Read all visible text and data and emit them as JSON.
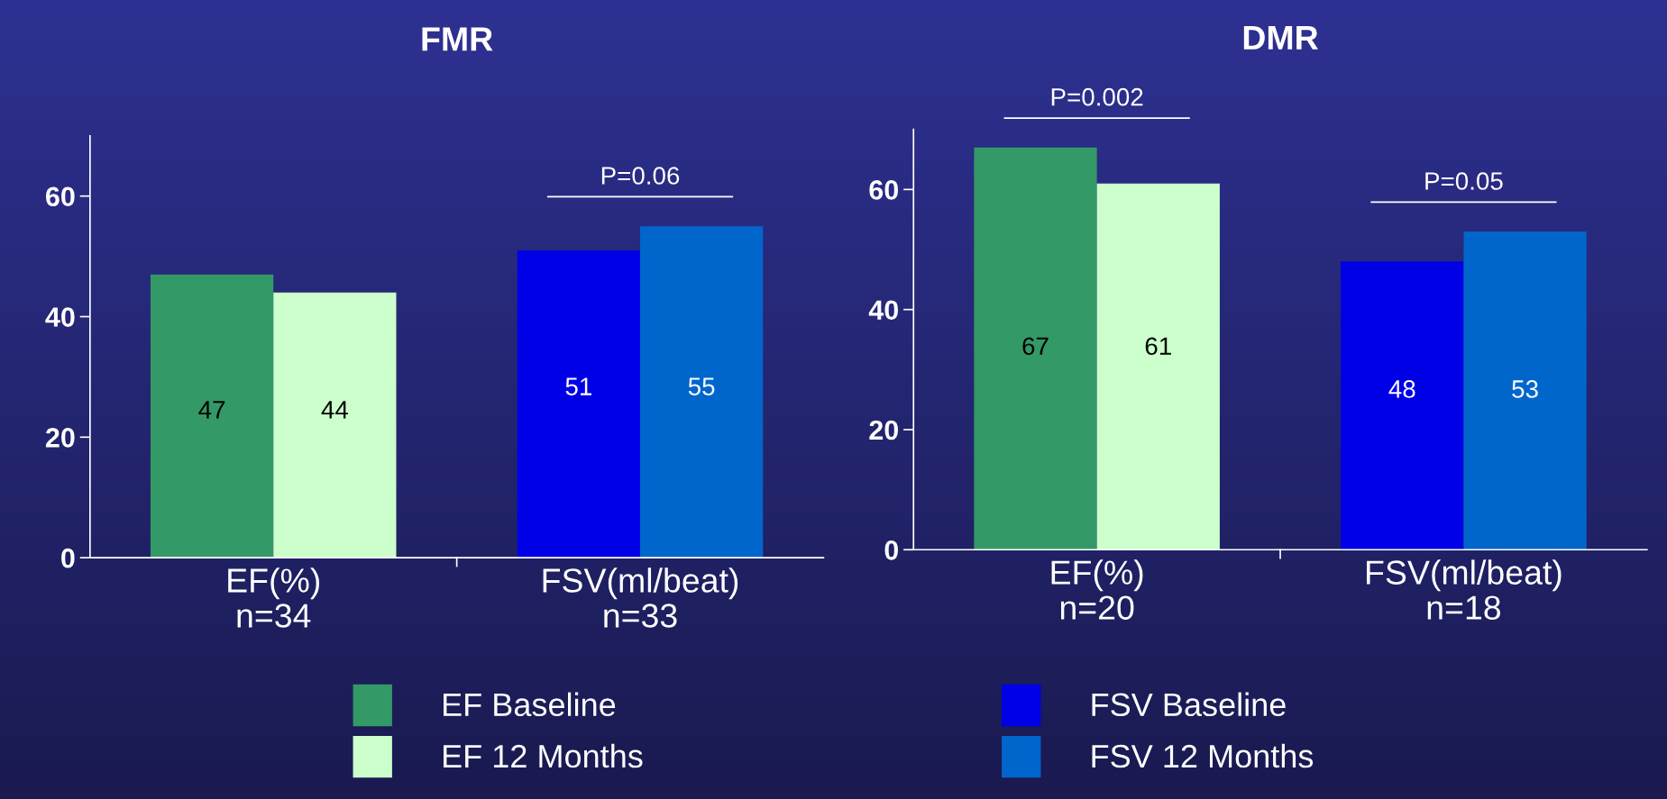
{
  "chart_data": [
    {
      "type": "bar",
      "title": "FMR",
      "categories": [
        "EF(%)\nn=34",
        "FSV(ml/beat)\nn=33"
      ],
      "series": [
        {
          "name": "EF Baseline",
          "color": "#339966",
          "values": [
            47,
            null
          ]
        },
        {
          "name": "EF 12 Months",
          "color": "#ccffcc",
          "values": [
            44,
            null
          ]
        },
        {
          "name": "FSV Baseline",
          "color": "#0000e6",
          "values": [
            null,
            51
          ]
        },
        {
          "name": "FSV 12 Months",
          "color": "#0066cc",
          "values": [
            null,
            55
          ]
        }
      ],
      "ylim": [
        0,
        70
      ],
      "yticks": [
        0,
        20,
        40,
        60
      ],
      "data_labels": true,
      "legend": "bottom",
      "grid": false,
      "annotations": [
        "P=0.06"
      ]
    },
    {
      "type": "bar",
      "title": "DMR",
      "categories": [
        "EF(%)\nn=20",
        "FSV(ml/beat)\nn=18"
      ],
      "series": [
        {
          "name": "EF Baseline",
          "color": "#339966",
          "values": [
            67,
            null
          ]
        },
        {
          "name": "EF 12 Months",
          "color": "#ccffcc",
          "values": [
            61,
            null
          ]
        },
        {
          "name": "FSV Baseline",
          "color": "#0000e6",
          "values": [
            null,
            48
          ]
        },
        {
          "name": "FSV 12 Months",
          "color": "#0066cc",
          "values": [
            null,
            53
          ]
        }
      ],
      "ylim": [
        0,
        70
      ],
      "yticks": [
        0,
        20,
        40,
        60
      ],
      "data_labels": true,
      "legend": "bottom",
      "grid": false,
      "annotations": [
        "P=0.002",
        "P=0.05"
      ]
    }
  ]
}
